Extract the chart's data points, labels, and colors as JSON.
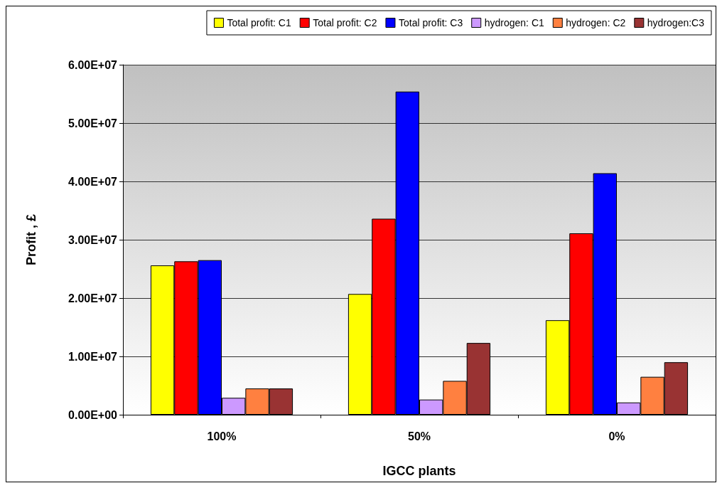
{
  "chart_data": {
    "type": "bar",
    "xlabel": "IGCC plants",
    "ylabel": "Profit , £",
    "categories": [
      "100%",
      "50%",
      "0%"
    ],
    "series": [
      {
        "name": "Total profit: C1",
        "color": "#ffff00",
        "values": [
          25600000,
          20700000,
          16200000
        ]
      },
      {
        "name": "Total profit: C2",
        "color": "#ff0000",
        "values": [
          26300000,
          33600000,
          31100000
        ]
      },
      {
        "name": "Total profit: C3",
        "color": "#0000ff",
        "values": [
          26500000,
          55400000,
          41400000
        ]
      },
      {
        "name": "hydrogen: C1",
        "color": "#cc99ff",
        "values": [
          2900000,
          2600000,
          2100000
        ]
      },
      {
        "name": "hydrogen: C2",
        "color": "#ff8040",
        "values": [
          4500000,
          5800000,
          6500000
        ]
      },
      {
        "name": "hydrogen:C3",
        "color": "#993333",
        "values": [
          4500000,
          12300000,
          9000000
        ]
      }
    ],
    "ylim": [
      0,
      60000000
    ],
    "yticks": [
      {
        "value": 0,
        "label": "0.00E+00"
      },
      {
        "value": 10000000,
        "label": "1.00E+07"
      },
      {
        "value": 20000000,
        "label": "2.00E+07"
      },
      {
        "value": 30000000,
        "label": "3.00E+07"
      },
      {
        "value": 40000000,
        "label": "4.00E+07"
      },
      {
        "value": 50000000,
        "label": "5.00E+07"
      },
      {
        "value": 60000000,
        "label": "6.00E+07"
      }
    ],
    "grid": "y",
    "legend": "top"
  }
}
